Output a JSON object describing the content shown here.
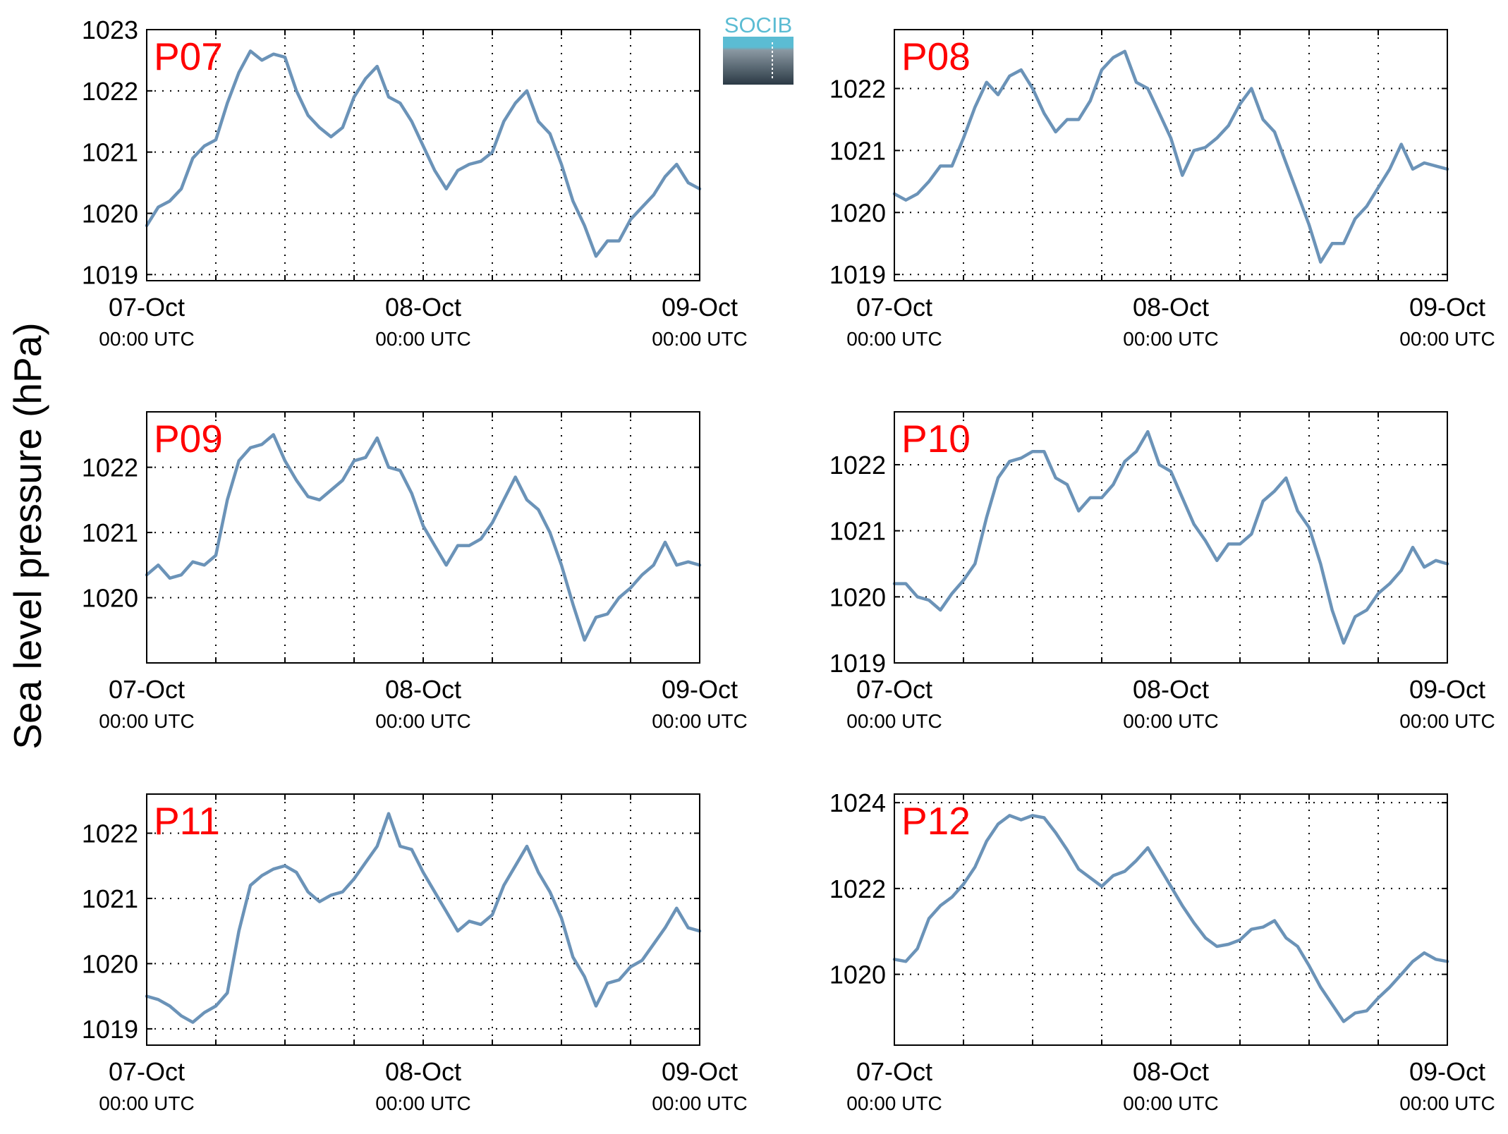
{
  "ylabel": "Sea level pressure (hPa)",
  "logo": {
    "text": "SOCIB"
  },
  "colors": {
    "line": "#6b93b8",
    "panel_label": "#ff0000",
    "axes": "#000000",
    "grid": "#000000",
    "logo_accent": "#5bbcd3",
    "logo_dark": "#2b3a45"
  },
  "x_ticks": [
    {
      "date": "07-Oct",
      "time": "00:00 UTC"
    },
    {
      "date": "08-Oct",
      "time": "00:00 UTC"
    },
    {
      "date": "09-Oct",
      "time": "00:00 UTC"
    }
  ],
  "chart_data": [
    {
      "type": "line",
      "panel_label": "P07",
      "xlim": [
        "2013-10-07T00:00",
        "2013-10-09T00:00"
      ],
      "ylim": [
        1018.9,
        1023
      ],
      "yticks": [
        1019,
        1020,
        1021,
        1022,
        1023
      ],
      "grid": true,
      "x_hours": [
        0,
        1,
        2,
        3,
        4,
        5,
        6,
        7,
        8,
        9,
        10,
        11,
        12,
        13,
        14,
        15,
        16,
        17,
        18,
        19,
        20,
        21,
        22,
        23,
        24,
        25,
        26,
        27,
        28,
        29,
        30,
        31,
        32,
        33,
        34,
        35,
        36,
        37,
        38,
        39,
        40,
        41,
        42,
        43,
        44,
        45,
        46,
        47,
        48
      ],
      "values": [
        1019.8,
        1020.1,
        1020.2,
        1020.4,
        1020.9,
        1021.1,
        1021.2,
        1021.8,
        1022.3,
        1022.65,
        1022.5,
        1022.6,
        1022.55,
        1022.0,
        1021.6,
        1021.4,
        1021.25,
        1021.4,
        1021.9,
        1022.2,
        1022.4,
        1021.9,
        1021.8,
        1021.5,
        1021.1,
        1020.7,
        1020.4,
        1020.7,
        1020.8,
        1020.85,
        1021.0,
        1021.5,
        1021.8,
        1022.0,
        1021.5,
        1021.3,
        1020.8,
        1020.2,
        1019.8,
        1019.3,
        1019.55,
        1019.55,
        1019.9,
        1020.1,
        1020.3,
        1020.6,
        1020.8,
        1020.5,
        1020.4
      ]
    },
    {
      "type": "line",
      "panel_label": "P08",
      "xlim": [
        "2013-10-07T00:00",
        "2013-10-09T00:00"
      ],
      "ylim": [
        1018.9,
        1022.95
      ],
      "yticks": [
        1019,
        1020,
        1021,
        1022
      ],
      "grid": true,
      "x_hours": [
        0,
        1,
        2,
        3,
        4,
        5,
        6,
        7,
        8,
        9,
        10,
        11,
        12,
        13,
        14,
        15,
        16,
        17,
        18,
        19,
        20,
        21,
        22,
        23,
        24,
        25,
        26,
        27,
        28,
        29,
        30,
        31,
        32,
        33,
        34,
        35,
        36,
        37,
        38,
        39,
        40,
        41,
        42,
        43,
        44,
        45,
        46,
        47,
        48
      ],
      "values": [
        1020.3,
        1020.2,
        1020.3,
        1020.5,
        1020.75,
        1020.75,
        1021.2,
        1021.7,
        1022.1,
        1021.9,
        1022.2,
        1022.3,
        1022.0,
        1021.6,
        1021.3,
        1021.5,
        1021.5,
        1021.8,
        1022.3,
        1022.5,
        1022.6,
        1022.1,
        1022.0,
        1021.6,
        1021.2,
        1020.6,
        1021.0,
        1021.05,
        1021.2,
        1021.4,
        1021.75,
        1022.0,
        1021.5,
        1021.3,
        1020.8,
        1020.3,
        1019.8,
        1019.2,
        1019.5,
        1019.5,
        1019.9,
        1020.1,
        1020.4,
        1020.7,
        1021.1,
        1020.7,
        1020.8,
        1020.75,
        1020.7
      ]
    },
    {
      "type": "line",
      "panel_label": "P09",
      "xlim": [
        "2013-10-07T00:00",
        "2013-10-09T00:00"
      ],
      "ylim": [
        1019,
        1022.85
      ],
      "yticks": [
        1020,
        1021,
        1022
      ],
      "grid": true,
      "x_hours": [
        0,
        1,
        2,
        3,
        4,
        5,
        6,
        7,
        8,
        9,
        10,
        11,
        12,
        13,
        14,
        15,
        16,
        17,
        18,
        19,
        20,
        21,
        22,
        23,
        24,
        25,
        26,
        27,
        28,
        29,
        30,
        31,
        32,
        33,
        34,
        35,
        36,
        37,
        38,
        39,
        40,
        41,
        42,
        43,
        44,
        45,
        46,
        47,
        48
      ],
      "values": [
        1020.35,
        1020.5,
        1020.3,
        1020.35,
        1020.55,
        1020.5,
        1020.65,
        1021.5,
        1022.1,
        1022.3,
        1022.35,
        1022.5,
        1022.1,
        1021.8,
        1021.55,
        1021.5,
        1021.65,
        1021.8,
        1022.1,
        1022.15,
        1022.45,
        1022.0,
        1021.95,
        1021.6,
        1021.1,
        1020.8,
        1020.5,
        1020.8,
        1020.8,
        1020.9,
        1021.15,
        1021.5,
        1021.85,
        1021.5,
        1021.35,
        1021.0,
        1020.5,
        1019.9,
        1019.35,
        1019.7,
        1019.75,
        1020.0,
        1020.15,
        1020.35,
        1020.5,
        1020.85,
        1020.5,
        1020.55,
        1020.5
      ]
    },
    {
      "type": "line",
      "panel_label": "P10",
      "xlim": [
        "2013-10-07T00:00",
        "2013-10-09T00:00"
      ],
      "ylim": [
        1019,
        1022.8
      ],
      "yticks": [
        1019,
        1020,
        1021,
        1022
      ],
      "grid": true,
      "x_hours": [
        0,
        1,
        2,
        3,
        4,
        5,
        6,
        7,
        8,
        9,
        10,
        11,
        12,
        13,
        14,
        15,
        16,
        17,
        18,
        19,
        20,
        21,
        22,
        23,
        24,
        25,
        26,
        27,
        28,
        29,
        30,
        31,
        32,
        33,
        34,
        35,
        36,
        37,
        38,
        39,
        40,
        41,
        42,
        43,
        44,
        45,
        46,
        47,
        48
      ],
      "values": [
        1020.2,
        1020.2,
        1020.0,
        1019.95,
        1019.8,
        1020.05,
        1020.25,
        1020.5,
        1021.2,
        1021.8,
        1022.05,
        1022.1,
        1022.2,
        1022.2,
        1021.8,
        1021.7,
        1021.3,
        1021.5,
        1021.5,
        1021.7,
        1022.05,
        1022.2,
        1022.5,
        1022.0,
        1021.9,
        1021.5,
        1021.1,
        1020.85,
        1020.55,
        1020.8,
        1020.8,
        1020.95,
        1021.45,
        1021.6,
        1021.8,
        1021.3,
        1021.05,
        1020.5,
        1019.8,
        1019.3,
        1019.7,
        1019.8,
        1020.05,
        1020.2,
        1020.4,
        1020.75,
        1020.45,
        1020.55,
        1020.5
      ]
    },
    {
      "type": "line",
      "panel_label": "P11",
      "xlim": [
        "2013-10-07T00:00",
        "2013-10-09T00:00"
      ],
      "ylim": [
        1018.75,
        1022.6
      ],
      "yticks": [
        1019,
        1020,
        1021,
        1022
      ],
      "grid": true,
      "x_hours": [
        0,
        1,
        2,
        3,
        4,
        5,
        6,
        7,
        8,
        9,
        10,
        11,
        12,
        13,
        14,
        15,
        16,
        17,
        18,
        19,
        20,
        21,
        22,
        23,
        24,
        25,
        26,
        27,
        28,
        29,
        30,
        31,
        32,
        33,
        34,
        35,
        36,
        37,
        38,
        39,
        40,
        41,
        42,
        43,
        44,
        45,
        46,
        47,
        48
      ],
      "values": [
        1019.5,
        1019.45,
        1019.35,
        1019.2,
        1019.1,
        1019.25,
        1019.35,
        1019.55,
        1020.5,
        1021.2,
        1021.35,
        1021.45,
        1021.5,
        1021.4,
        1021.1,
        1020.95,
        1021.05,
        1021.1,
        1021.3,
        1021.55,
        1021.8,
        1022.3,
        1021.8,
        1021.75,
        1021.4,
        1021.1,
        1020.8,
        1020.5,
        1020.65,
        1020.6,
        1020.75,
        1021.2,
        1021.5,
        1021.8,
        1021.4,
        1021.1,
        1020.7,
        1020.1,
        1019.8,
        1019.35,
        1019.7,
        1019.75,
        1019.95,
        1020.05,
        1020.3,
        1020.55,
        1020.85,
        1020.55,
        1020.5
      ]
    },
    {
      "type": "line",
      "panel_label": "P12",
      "xlim": [
        "2013-10-07T00:00",
        "2013-10-09T00:00"
      ],
      "ylim": [
        1018.35,
        1024.2
      ],
      "yticks": [
        1020,
        1022,
        1024
      ],
      "grid": true,
      "x_hours": [
        0,
        1,
        2,
        3,
        4,
        5,
        6,
        7,
        8,
        9,
        10,
        11,
        12,
        13,
        14,
        15,
        16,
        17,
        18,
        19,
        20,
        21,
        22,
        23,
        24,
        25,
        26,
        27,
        28,
        29,
        30,
        31,
        32,
        33,
        34,
        35,
        36,
        37,
        38,
        39,
        40,
        41,
        42,
        43,
        44,
        45,
        46,
        47,
        48
      ],
      "values": [
        1020.35,
        1020.3,
        1020.6,
        1021.3,
        1021.6,
        1021.8,
        1022.1,
        1022.5,
        1023.1,
        1023.5,
        1023.7,
        1023.6,
        1023.7,
        1023.65,
        1023.3,
        1022.9,
        1022.45,
        1022.25,
        1022.05,
        1022.3,
        1022.4,
        1022.65,
        1022.95,
        1022.5,
        1022.05,
        1021.6,
        1021.2,
        1020.85,
        1020.65,
        1020.7,
        1020.8,
        1021.05,
        1021.1,
        1021.25,
        1020.85,
        1020.65,
        1020.2,
        1019.7,
        1019.3,
        1018.9,
        1019.1,
        1019.15,
        1019.45,
        1019.7,
        1020.0,
        1020.3,
        1020.5,
        1020.35,
        1020.3
      ]
    }
  ]
}
